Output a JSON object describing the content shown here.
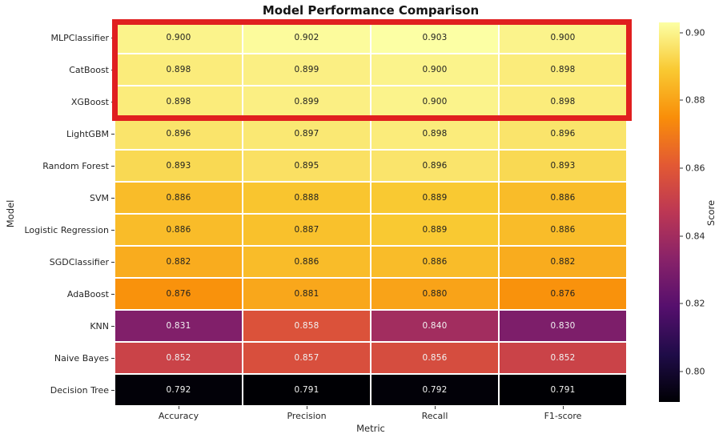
{
  "chart_data": {
    "type": "heatmap",
    "title": "Model Performance Comparison",
    "xlabel": "Metric",
    "ylabel": "Model",
    "columns": [
      "Accuracy",
      "Precision",
      "Recall",
      "F1-score"
    ],
    "rows": [
      {
        "model": "MLPClassifier",
        "values": [
          0.9,
          0.902,
          0.903,
          0.9
        ],
        "labels": [
          "0.900",
          "0.902",
          "0.903",
          "0.900"
        ],
        "colors": [
          "#fbf38b",
          "#fcfb9c",
          "#fcffa4",
          "#fbf38b"
        ],
        "text": "dark"
      },
      {
        "model": "CatBoost",
        "values": [
          0.898,
          0.899,
          0.9,
          0.898
        ],
        "labels": [
          "0.898",
          "0.899",
          "0.900",
          "0.898"
        ],
        "colors": [
          "#fbec7b",
          "#fbef83",
          "#fbf38b",
          "#fbec7b"
        ],
        "text": "dark"
      },
      {
        "model": "XGBoost",
        "values": [
          0.898,
          0.899,
          0.9,
          0.898
        ],
        "labels": [
          "0.898",
          "0.899",
          "0.900",
          "0.898"
        ],
        "colors": [
          "#fbec7b",
          "#fbef83",
          "#fbf38b",
          "#fbec7b"
        ],
        "text": "dark"
      },
      {
        "model": "LightGBM",
        "values": [
          0.896,
          0.897,
          0.898,
          0.896
        ],
        "labels": [
          "0.896",
          "0.897",
          "0.898",
          "0.896"
        ],
        "colors": [
          "#fae46b",
          "#fae873",
          "#fbec7b",
          "#fae46b"
        ],
        "text": "dark"
      },
      {
        "model": "Random Forest",
        "values": [
          0.893,
          0.895,
          0.896,
          0.893
        ],
        "labels": [
          "0.893",
          "0.895",
          "0.896",
          "0.893"
        ],
        "colors": [
          "#f9d953",
          "#fae063",
          "#fae46b",
          "#f9d953"
        ],
        "text": "dark"
      },
      {
        "model": "SVM",
        "values": [
          0.886,
          0.888,
          0.889,
          0.886
        ],
        "labels": [
          "0.886",
          "0.888",
          "0.889",
          "0.886"
        ],
        "colors": [
          "#f9bc29",
          "#f9c52f",
          "#f9c932",
          "#f9bc29"
        ],
        "text": "dark"
      },
      {
        "model": "Logistic Regression",
        "values": [
          0.886,
          0.887,
          0.889,
          0.886
        ],
        "labels": [
          "0.886",
          "0.887",
          "0.889",
          "0.886"
        ],
        "colors": [
          "#f9bc29",
          "#f9c12c",
          "#f9c932",
          "#f9bc29"
        ],
        "text": "dark"
      },
      {
        "model": "SGDClassifier",
        "values": [
          0.882,
          0.886,
          0.886,
          0.882
        ],
        "labels": [
          "0.882",
          "0.886",
          "0.886",
          "0.882"
        ],
        "colors": [
          "#f9ac1e",
          "#f9bc29",
          "#f9bc29",
          "#f9ac1e"
        ],
        "text": "dark"
      },
      {
        "model": "AdaBoost",
        "values": [
          0.876,
          0.881,
          0.88,
          0.876
        ],
        "labels": [
          "0.876",
          "0.881",
          "0.880",
          "0.876"
        ],
        "colors": [
          "#f9920c",
          "#f9a71b",
          "#f9a318",
          "#f9920c"
        ],
        "text": "dark"
      },
      {
        "model": "KNN",
        "values": [
          0.831,
          0.858,
          0.84,
          0.83
        ],
        "labels": [
          "0.831",
          "0.858",
          "0.840",
          "0.830"
        ],
        "colors": [
          "#811f6a",
          "#db523a",
          "#a22d5f",
          "#7d1e6a"
        ],
        "text": "light"
      },
      {
        "model": "Naive Bayes",
        "values": [
          0.852,
          0.857,
          0.856,
          0.852
        ],
        "labels": [
          "0.852",
          "0.857",
          "0.856",
          "0.852"
        ],
        "colors": [
          "#ca4348",
          "#d84f3d",
          "#d54d3f",
          "#ca4348"
        ],
        "text": "light"
      },
      {
        "model": "Decision Tree",
        "values": [
          0.792,
          0.791,
          0.792,
          0.791
        ],
        "labels": [
          "0.792",
          "0.791",
          "0.792",
          "0.791"
        ],
        "colors": [
          "#020108",
          "#000004",
          "#020108",
          "#000004"
        ],
        "text": "light"
      }
    ],
    "annotation_text_colors": {
      "dark": "#1f1f1f",
      "light": "#f2f2f2"
    },
    "colorbar": {
      "label": "Score",
      "colormap": "inferno",
      "vmin": 0.791,
      "vmax": 0.903,
      "ticks": [
        "0.90",
        "0.88",
        "0.86",
        "0.84",
        "0.82",
        "0.80"
      ],
      "gradient": [
        {
          "pos": 0,
          "color": "#fcffa4"
        },
        {
          "pos": 12.5,
          "color": "#f9c932"
        },
        {
          "pos": 25,
          "color": "#f98e09"
        },
        {
          "pos": 37.5,
          "color": "#e35933"
        },
        {
          "pos": 50,
          "color": "#bc3754"
        },
        {
          "pos": 62.5,
          "color": "#882269"
        },
        {
          "pos": 75,
          "color": "#550f6d"
        },
        {
          "pos": 87.5,
          "color": "#1f0c48"
        },
        {
          "pos": 100,
          "color": "#000004"
        }
      ]
    },
    "highlight": {
      "models": [
        "MLPClassifier",
        "CatBoost",
        "XGBoost"
      ],
      "color": "#e01f1f"
    },
    "legend_position": "right",
    "grid": false
  }
}
